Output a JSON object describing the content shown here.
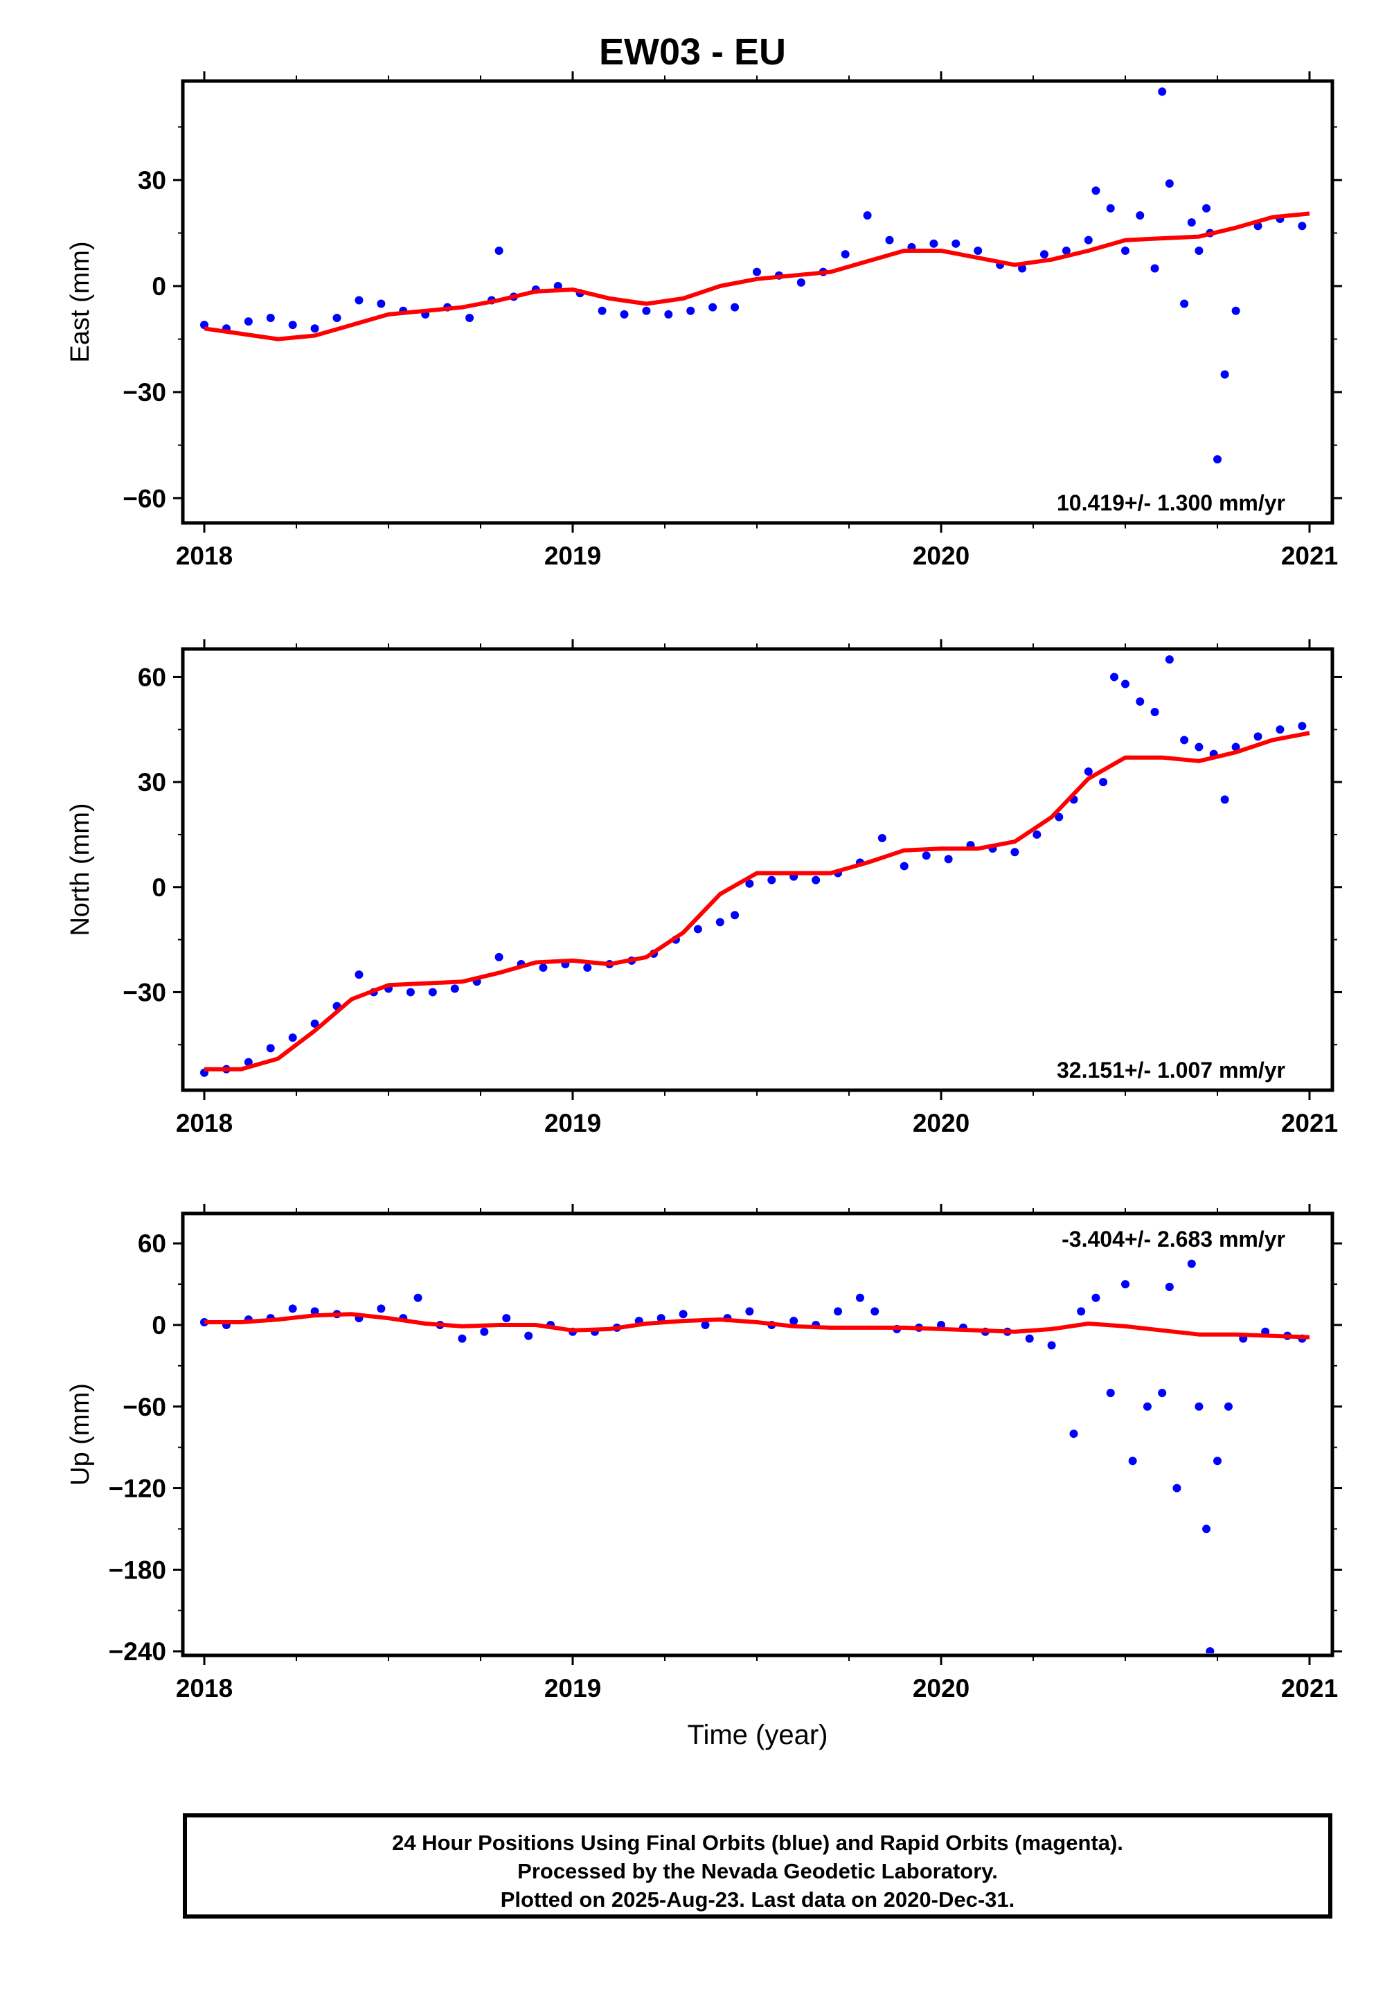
{
  "title": "EW03 - EU",
  "footer": {
    "line1": "24 Hour Positions Using Final Orbits (blue) and Rapid Orbits (magenta).",
    "line2": "Processed by the Nevada Geodetic Laboratory.",
    "line3": "Plotted on 2025-Aug-23. Last data on 2020-Dec-31."
  },
  "colors": {
    "points": "#0000ff",
    "fit": "#ff0000",
    "frame": "#000000"
  },
  "chart_data": [
    {
      "type": "scatter",
      "ylabel": "East (mm)",
      "xlabel": "",
      "xlim": [
        2018,
        2021
      ],
      "ylim": [
        -67,
        58
      ],
      "xticks": [
        "2018",
        "2019",
        "2020",
        "2021"
      ],
      "yticks": [
        "−60",
        "−30",
        "0",
        "30"
      ],
      "ytick_values": [
        -60,
        -30,
        0,
        30
      ],
      "rate_label": "10.419+/- 1.300 mm/yr",
      "trend": {
        "x": [
          2018.0,
          2018.1,
          2018.2,
          2018.3,
          2018.4,
          2018.5,
          2018.6,
          2018.7,
          2018.8,
          2018.9,
          2019.0,
          2019.1,
          2019.2,
          2019.3,
          2019.4,
          2019.5,
          2019.6,
          2019.7,
          2019.8,
          2019.9,
          2020.0,
          2020.1,
          2020.2,
          2020.3,
          2020.4,
          2020.5,
          2020.6,
          2020.7,
          2020.8,
          2020.9,
          2021.0
        ],
        "y": [
          -12,
          -13.5,
          -15,
          -14,
          -11,
          -8,
          -7,
          -6,
          -4,
          -1.5,
          -1,
          -3.5,
          -5,
          -3.5,
          0,
          2,
          3,
          4,
          7,
          10,
          10,
          8,
          6,
          7.5,
          10,
          13,
          13.5,
          14,
          16.5,
          19.5,
          20.5
        ]
      },
      "points": {
        "x": [
          2018.0,
          2018.06,
          2018.12,
          2018.18,
          2018.24,
          2018.3,
          2018.36,
          2018.42,
          2018.48,
          2018.54,
          2018.6,
          2018.66,
          2018.72,
          2018.78,
          2018.8,
          2018.84,
          2018.9,
          2018.96,
          2019.02,
          2019.08,
          2019.14,
          2019.2,
          2019.26,
          2019.32,
          2019.38,
          2019.44,
          2019.5,
          2019.56,
          2019.62,
          2019.68,
          2019.74,
          2019.8,
          2019.86,
          2019.92,
          2019.98,
          2020.04,
          2020.1,
          2020.16,
          2020.22,
          2020.28,
          2020.34,
          2020.4,
          2020.42,
          2020.46,
          2020.5,
          2020.54,
          2020.58,
          2020.6,
          2020.62,
          2020.66,
          2020.68,
          2020.7,
          2020.72,
          2020.73,
          2020.75,
          2020.77,
          2020.8,
          2020.86,
          2020.92,
          2020.98
        ],
        "y": [
          -11,
          -12,
          -10,
          -9,
          -11,
          -12,
          -9,
          -4,
          -5,
          -7,
          -8,
          -6,
          -9,
          -4,
          10,
          -3,
          -1,
          0,
          -2,
          -7,
          -8,
          -7,
          -8,
          -7,
          -6,
          -6,
          4,
          3,
          1,
          4,
          9,
          20,
          13,
          11,
          12,
          12,
          10,
          6,
          5,
          9,
          10,
          13,
          27,
          22,
          10,
          20,
          5,
          55,
          29,
          -5,
          18,
          10,
          22,
          15,
          -49,
          -25,
          -7,
          17,
          19,
          17
        ]
      }
    },
    {
      "type": "scatter",
      "ylabel": "North (mm)",
      "xlabel": "",
      "xlim": [
        2018,
        2021
      ],
      "ylim": [
        -58,
        68
      ],
      "xticks": [
        "2018",
        "2019",
        "2020",
        "2021"
      ],
      "yticks": [
        "−30",
        "0",
        "30",
        "60"
      ],
      "ytick_values": [
        -30,
        0,
        30,
        60
      ],
      "rate_label": "32.151+/- 1.007 mm/yr",
      "trend": {
        "x": [
          2018.0,
          2018.1,
          2018.2,
          2018.3,
          2018.4,
          2018.5,
          2018.6,
          2018.7,
          2018.8,
          2018.9,
          2019.0,
          2019.1,
          2019.2,
          2019.3,
          2019.4,
          2019.5,
          2019.6,
          2019.7,
          2019.8,
          2019.9,
          2020.0,
          2020.1,
          2020.2,
          2020.3,
          2020.4,
          2020.5,
          2020.6,
          2020.7,
          2020.8,
          2020.9,
          2021.0
        ],
        "y": [
          -52,
          -52,
          -49,
          -41,
          -32,
          -28,
          -27.5,
          -27,
          -24.5,
          -21.5,
          -21,
          -22,
          -20,
          -13,
          -2,
          4,
          4,
          4,
          7,
          10.5,
          11,
          11,
          13,
          20,
          31,
          37,
          37,
          36,
          38.5,
          42,
          44
        ]
      },
      "points": {
        "x": [
          2018.0,
          2018.06,
          2018.12,
          2018.18,
          2018.24,
          2018.3,
          2018.36,
          2018.42,
          2018.46,
          2018.5,
          2018.56,
          2018.62,
          2018.68,
          2018.74,
          2018.8,
          2018.86,
          2018.92,
          2018.98,
          2019.04,
          2019.1,
          2019.16,
          2019.22,
          2019.28,
          2019.34,
          2019.4,
          2019.44,
          2019.48,
          2019.54,
          2019.6,
          2019.66,
          2019.72,
          2019.78,
          2019.84,
          2019.9,
          2019.96,
          2020.02,
          2020.08,
          2020.14,
          2020.2,
          2020.26,
          2020.32,
          2020.36,
          2020.4,
          2020.44,
          2020.47,
          2020.5,
          2020.54,
          2020.58,
          2020.62,
          2020.66,
          2020.7,
          2020.74,
          2020.77,
          2020.8,
          2020.86,
          2020.92,
          2020.98
        ],
        "y": [
          -53,
          -52,
          -50,
          -46,
          -43,
          -39,
          -34,
          -25,
          -30,
          -29,
          -30,
          -30,
          -29,
          -27,
          -20,
          -22,
          -23,
          -22,
          -23,
          -22,
          -21,
          -19,
          -15,
          -12,
          -10,
          -8,
          1,
          2,
          3,
          2,
          4,
          7,
          14,
          6,
          9,
          8,
          12,
          11,
          10,
          15,
          20,
          25,
          33,
          30,
          60,
          58,
          53,
          50,
          65,
          42,
          40,
          38,
          25,
          40,
          43,
          45,
          46
        ]
      }
    },
    {
      "type": "scatter",
      "ylabel": "Up (mm)",
      "xlabel": "Time (year)",
      "xlim": [
        2018,
        2021
      ],
      "ylim": [
        -243,
        82
      ],
      "xticks": [
        "2018",
        "2019",
        "2020",
        "2021"
      ],
      "yticks": [
        "−240",
        "−180",
        "−120",
        "−60",
        "0",
        "60"
      ],
      "ytick_values": [
        -240,
        -180,
        -120,
        -60,
        0,
        60
      ],
      "rate_label": "-3.404+/- 2.683 mm/yr",
      "trend": {
        "x": [
          2018.0,
          2018.1,
          2018.2,
          2018.3,
          2018.4,
          2018.5,
          2018.6,
          2018.7,
          2018.8,
          2018.9,
          2019.0,
          2019.1,
          2019.2,
          2019.3,
          2019.4,
          2019.5,
          2019.6,
          2019.7,
          2019.8,
          2019.9,
          2020.0,
          2020.1,
          2020.2,
          2020.3,
          2020.4,
          2020.5,
          2020.6,
          2020.7,
          2020.8,
          2020.9,
          2021.0
        ],
        "y": [
          2,
          2,
          4,
          7,
          8,
          5,
          1,
          -1,
          0,
          0,
          -4,
          -3,
          1,
          3,
          4,
          2,
          -1,
          -2,
          -2,
          -2,
          -3,
          -4,
          -5,
          -3,
          1,
          -1,
          -4,
          -7,
          -7,
          -8,
          -9
        ]
      },
      "points": {
        "x": [
          2018.0,
          2018.06,
          2018.12,
          2018.18,
          2018.24,
          2018.3,
          2018.36,
          2018.42,
          2018.48,
          2018.54,
          2018.58,
          2018.64,
          2018.7,
          2018.76,
          2018.82,
          2018.88,
          2018.94,
          2019.0,
          2019.06,
          2019.12,
          2019.18,
          2019.24,
          2019.3,
          2019.36,
          2019.42,
          2019.48,
          2019.54,
          2019.6,
          2019.66,
          2019.72,
          2019.78,
          2019.82,
          2019.88,
          2019.94,
          2020.0,
          2020.06,
          2020.12,
          2020.18,
          2020.24,
          2020.3,
          2020.36,
          2020.38,
          2020.42,
          2020.46,
          2020.5,
          2020.52,
          2020.56,
          2020.6,
          2020.62,
          2020.64,
          2020.68,
          2020.7,
          2020.72,
          2020.73,
          2020.75,
          2020.78,
          2020.82,
          2020.88,
          2020.94,
          2020.98
        ],
        "y": [
          2,
          0,
          4,
          5,
          12,
          10,
          8,
          5,
          12,
          5,
          20,
          0,
          -10,
          -5,
          5,
          -8,
          0,
          -5,
          -5,
          -2,
          3,
          5,
          8,
          0,
          5,
          10,
          0,
          3,
          0,
          10,
          20,
          10,
          -3,
          -2,
          0,
          -2,
          -5,
          -5,
          -10,
          -15,
          -80,
          10,
          20,
          -50,
          30,
          -100,
          -60,
          -50,
          28,
          -120,
          45,
          -60,
          -150,
          -240,
          -100,
          -60,
          -10,
          -5,
          -8,
          -10
        ]
      }
    }
  ]
}
